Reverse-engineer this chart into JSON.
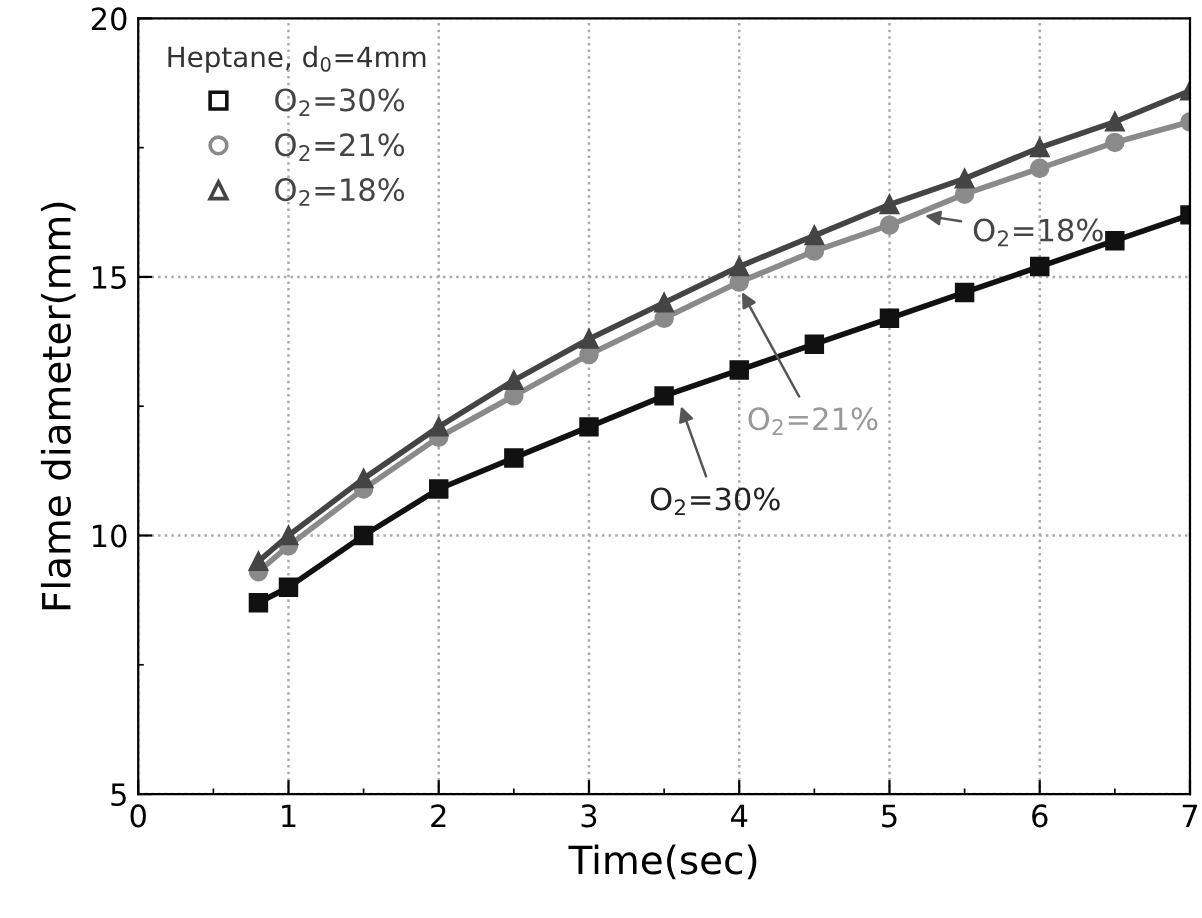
{
  "chart_data": {
    "type": "line",
    "xlabel": "Time(sec)",
    "ylabel": "Flame diameter(mm)",
    "xlim": [
      0,
      7
    ],
    "xticks": [
      0,
      1,
      2,
      3,
      4,
      5,
      6,
      7
    ],
    "ylim": [
      5,
      20
    ],
    "yticks": [
      5,
      10,
      15,
      20
    ],
    "grid": true,
    "legend": "top left",
    "legend_title": "Heptane, d$_{0}$=4mm",
    "x": [
      0.8,
      1,
      1.5,
      2,
      2.5,
      3,
      3.5,
      4,
      4.5,
      5,
      5.5,
      6,
      6.5,
      7
    ],
    "series": [
      {
        "name": "O$_{2}$=30%",
        "color": "#111111",
        "marker": "square",
        "values": [
          8.7,
          9.0,
          10.0,
          10.9,
          11.5,
          12.1,
          12.7,
          13.2,
          13.7,
          14.2,
          14.7,
          15.2,
          15.7,
          16.2
        ]
      },
      {
        "name": "O$_{2}$=21%",
        "color": "#8a8a8a",
        "marker": "circle",
        "values": [
          9.3,
          9.8,
          10.9,
          11.9,
          12.7,
          13.5,
          14.2,
          14.9,
          15.5,
          16.0,
          16.6,
          17.1,
          17.6,
          18.0
        ]
      },
      {
        "name": "O$_{2}$=18%",
        "color": "#444444",
        "marker": "triangle",
        "values": [
          9.5,
          10.0,
          11.1,
          12.1,
          13.0,
          13.8,
          14.5,
          15.2,
          15.8,
          16.4,
          16.9,
          17.5,
          18.0,
          18.6
        ]
      }
    ],
    "annotations": [
      {
        "text": "O$_{2}$=18%",
        "x": 5.2,
        "y": 16.2
      },
      {
        "text": "O$_{2}$=21%",
        "x": 4.0,
        "y": 14.8
      },
      {
        "text": "O$_{2}$=30%",
        "x": 3.6,
        "y": 12.6
      }
    ]
  }
}
